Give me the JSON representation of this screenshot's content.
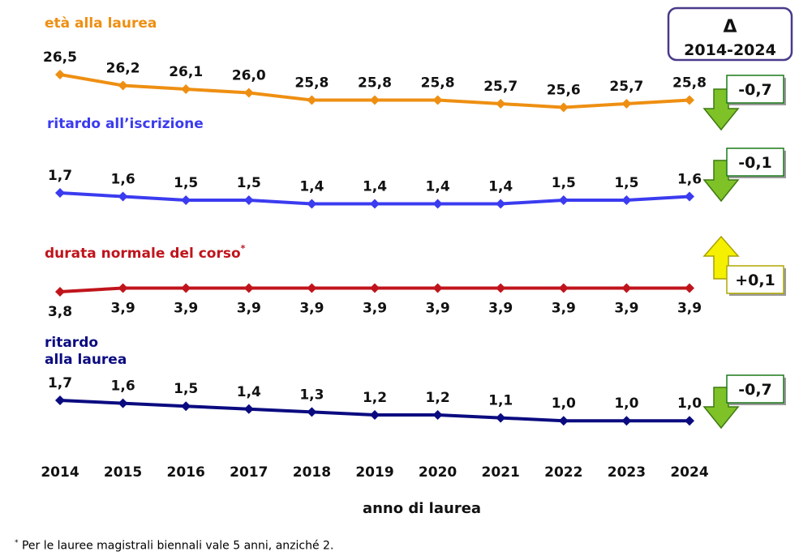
{
  "chart_data": {
    "type": "line",
    "x": [
      "2014",
      "2015",
      "2016",
      "2017",
      "2018",
      "2019",
      "2020",
      "2021",
      "2022",
      "2023",
      "2024"
    ],
    "xlabel": "anno di laurea",
    "series": [
      {
        "name": "età alla laurea",
        "name_footnote_mark": "",
        "color": "#ee8f12",
        "values": [
          26.5,
          26.2,
          26.1,
          26.0,
          25.8,
          25.8,
          25.8,
          25.7,
          25.6,
          25.7,
          25.8
        ],
        "value_labels": [
          "26,5",
          "26,2",
          "26,1",
          "26,0",
          "25,8",
          "25,8",
          "25,8",
          "25,7",
          "25,6",
          "25,7",
          "25,8"
        ],
        "delta": "-0,7",
        "delta_direction": "down"
      },
      {
        "name": "ritardo all’iscrizione",
        "name_footnote_mark": "",
        "color": "#3b3bf0",
        "values": [
          1.7,
          1.6,
          1.5,
          1.5,
          1.4,
          1.4,
          1.4,
          1.4,
          1.5,
          1.5,
          1.6
        ],
        "value_labels": [
          "1,7",
          "1,6",
          "1,5",
          "1,5",
          "1,4",
          "1,4",
          "1,4",
          "1,4",
          "1,5",
          "1,5",
          "1,6"
        ],
        "delta": "-0,1",
        "delta_direction": "down"
      },
      {
        "name": "durata normale del corso",
        "name_footnote_mark": "*",
        "color": "#c0141c",
        "values": [
          3.8,
          3.9,
          3.9,
          3.9,
          3.9,
          3.9,
          3.9,
          3.9,
          3.9,
          3.9,
          3.9
        ],
        "value_labels": [
          "3,8",
          "3,9",
          "3,9",
          "3,9",
          "3,9",
          "3,9",
          "3,9",
          "3,9",
          "3,9",
          "3,9",
          "3,9"
        ],
        "delta": "+0,1",
        "delta_direction": "up"
      },
      {
        "name": "ritardo\nalla laurea",
        "name_footnote_mark": "",
        "color": "#0b0b80",
        "values": [
          1.7,
          1.6,
          1.5,
          1.4,
          1.3,
          1.2,
          1.2,
          1.1,
          1.0,
          1.0,
          1.0
        ],
        "value_labels": [
          "1,7",
          "1,6",
          "1,5",
          "1,4",
          "1,3",
          "1,2",
          "1,2",
          "1,1",
          "1,0",
          "1,0",
          "1,0"
        ],
        "delta": "-0,7",
        "delta_direction": "down"
      }
    ],
    "delta_header": {
      "symbol": "Δ",
      "period": "2014-2024"
    },
    "colors": {
      "down_arrow": "#7ec228",
      "up_arrow": "#f5f000",
      "delta_box_border": "#1a7a1a",
      "header_border": "#4a3a8a"
    }
  },
  "footnote": {
    "mark": "*",
    "text": "Per le lauree magistrali biennali vale 5 anni, anziché 2."
  }
}
